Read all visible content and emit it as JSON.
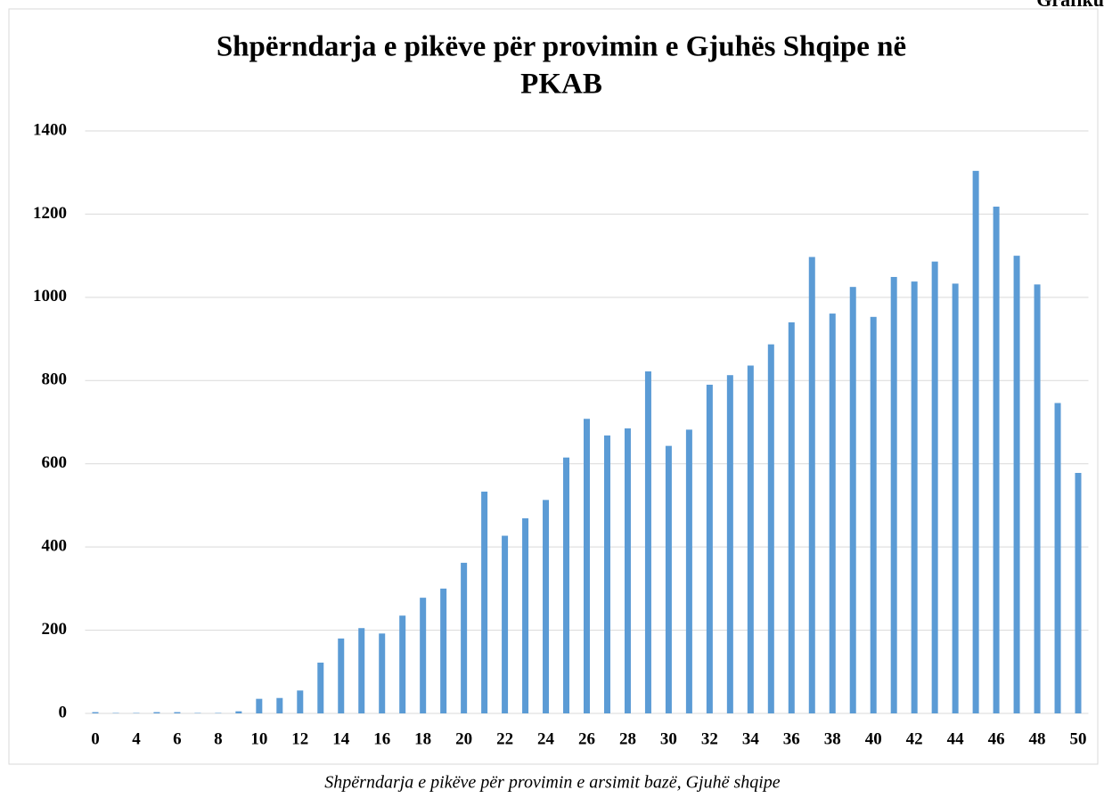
{
  "corner_label": "Grafiku",
  "caption": "Shpërndarja e pikëve për provimin e arsimit bazë, Gjuhë shqipe",
  "chart_data": {
    "type": "bar",
    "title": [
      "Shpërndarja e pikëve për provimin e Gjuhës Shqipe në",
      "PKAB"
    ],
    "categories": [
      "0",
      null,
      "4",
      null,
      "6",
      null,
      "8",
      null,
      "10",
      null,
      "12",
      null,
      "14",
      null,
      "16",
      null,
      "18",
      null,
      "20",
      null,
      "22",
      null,
      "24",
      null,
      "26",
      null,
      "28",
      null,
      "30",
      null,
      "32",
      null,
      "34",
      null,
      "36",
      null,
      "38",
      null,
      "40",
      null,
      "42",
      null,
      "44",
      null,
      "46",
      null,
      "48",
      null,
      "50"
    ],
    "values": [
      3,
      1,
      1,
      3,
      3,
      1,
      1,
      5,
      35,
      37,
      55,
      122,
      180,
      205,
      192,
      235,
      278,
      300,
      362,
      533,
      427,
      469,
      513,
      615,
      708,
      668,
      685,
      822,
      643,
      682,
      790,
      813,
      836,
      887,
      940,
      1097,
      961,
      1025,
      953,
      1049,
      1038,
      1086,
      1033,
      1304,
      1218,
      1100,
      1031,
      746,
      578
    ],
    "color": "#5b9bd5",
    "ylim": [
      0,
      1400
    ],
    "yticks": [
      0,
      200,
      400,
      600,
      800,
      1000,
      1200,
      1400
    ],
    "grid": true
  }
}
